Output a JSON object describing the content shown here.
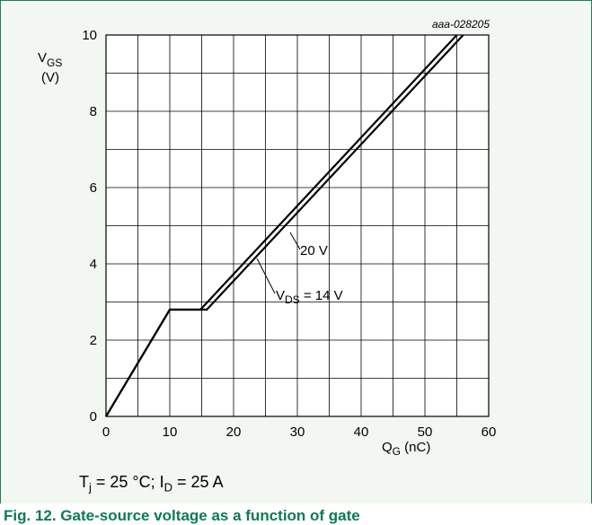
{
  "figure_id": "aaa-028205",
  "chart_data": {
    "type": "line",
    "xlabel": {
      "main": "Q",
      "sub": "G",
      "unit": " (nC)"
    },
    "ylabel": {
      "main": "V",
      "sub": "GS",
      "unit": "(V)"
    },
    "xlim": [
      0,
      60
    ],
    "ylim": [
      0,
      10
    ],
    "x_ticks": [
      0,
      10,
      20,
      30,
      40,
      50,
      60
    ],
    "y_ticks": [
      0,
      2,
      4,
      6,
      8,
      10
    ],
    "grid": true,
    "series": [
      {
        "name": "VDS = 14 V",
        "label": {
          "main": "V",
          "sub": "DS",
          "tail": " = 14 V"
        },
        "points": [
          [
            0,
            0
          ],
          [
            10,
            2.8
          ],
          [
            14.8,
            2.8
          ],
          [
            55,
            10
          ]
        ]
      },
      {
        "name": "20 V",
        "label": {
          "main": "20 V"
        },
        "points": [
          [
            0,
            0
          ],
          [
            10,
            2.8
          ],
          [
            15.8,
            2.8
          ],
          [
            56,
            10
          ]
        ]
      }
    ]
  },
  "conditions": {
    "t_main": "T",
    "t_sub": "j",
    "t_text": " = 25 °C; I",
    "i_sub": "D",
    "i_text": " = 25 A"
  },
  "caption": "Fig. 12. Gate-source voltage as a function of gate"
}
